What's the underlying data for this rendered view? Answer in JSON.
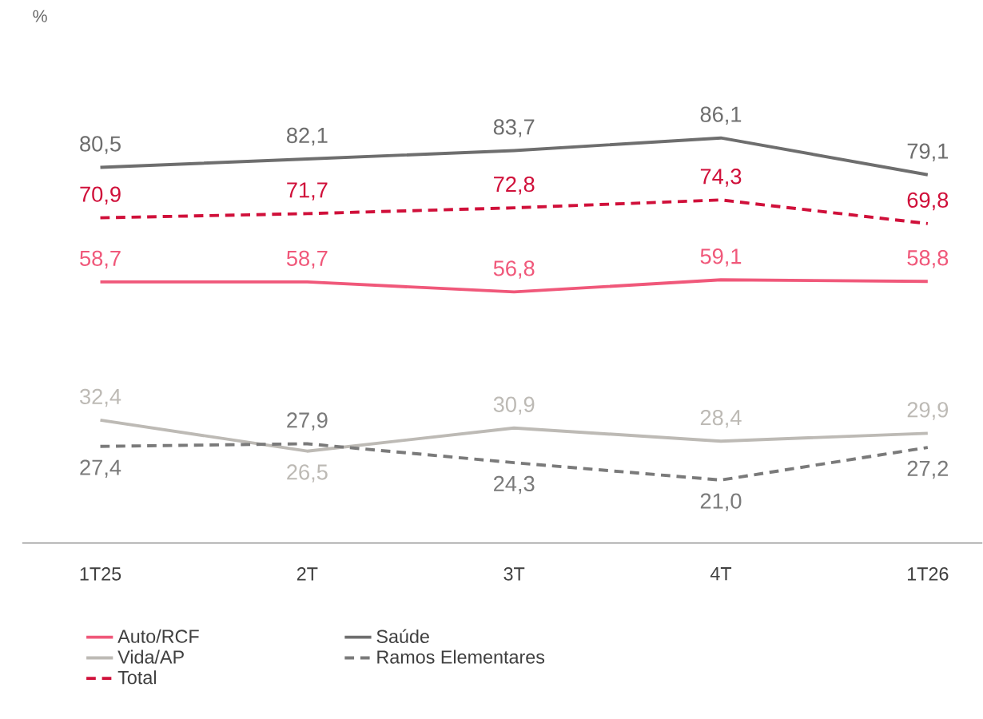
{
  "chart_data": {
    "type": "line",
    "annotations": [
      "%"
    ],
    "categories": [
      "1T25",
      "2T",
      "3T",
      "4T",
      "1T26"
    ],
    "tick_labels": "x",
    "legend": "bottom",
    "series": [
      {
        "name": "Auto/RCF",
        "color": "#f0587a",
        "line_style": "solid",
        "values": [
          58.7,
          58.7,
          56.8,
          59.1,
          58.8
        ],
        "value_labels": [
          "58,7",
          "58,7",
          "56,8",
          "59,1",
          "58,8"
        ]
      },
      {
        "name": "Saúde",
        "color": "#6e6e6e",
        "line_style": "solid",
        "values": [
          80.5,
          82.1,
          83.7,
          86.1,
          79.1
        ],
        "value_labels": [
          "80,5",
          "82,1",
          "83,7",
          "86,1",
          "79,1"
        ]
      },
      {
        "name": "Vida/AP",
        "color": "#bdbab5",
        "line_style": "solid",
        "values": [
          32.4,
          26.5,
          30.9,
          28.4,
          29.9
        ],
        "value_labels": [
          "32,4",
          "26,5",
          "30,9",
          "28,4",
          "29,9"
        ]
      },
      {
        "name": "Ramos Elementares",
        "color": "#7a7a7a",
        "line_style": "dashed",
        "values": [
          27.4,
          27.9,
          24.3,
          21.0,
          27.2
        ],
        "value_labels": [
          "27,4",
          "27,9",
          "24,3",
          "21,0",
          "27,2"
        ]
      },
      {
        "name": "Total",
        "color": "#d0103a",
        "line_style": "dashed",
        "values": [
          70.9,
          71.7,
          72.8,
          74.3,
          69.8
        ],
        "value_labels": [
          "70,9",
          "71,7",
          "72,8",
          "74,3",
          "69,8"
        ]
      }
    ]
  }
}
